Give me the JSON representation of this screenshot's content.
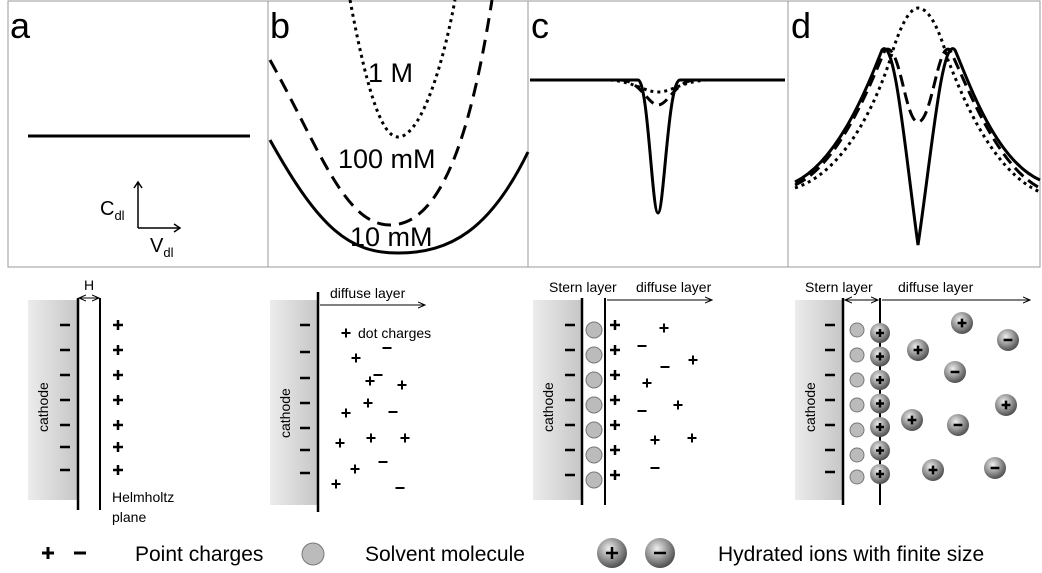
{
  "panels": [
    {
      "label": "a",
      "axis": {
        "y": "C",
        "y_sub": "dl",
        "x": "V",
        "x_sub": "dl"
      }
    },
    {
      "label": "b",
      "curve_labels": [
        "1 M",
        "100 mM",
        "10 mM"
      ]
    },
    {
      "label": "c"
    },
    {
      "label": "d"
    }
  ],
  "diagrams": [
    {
      "electrode": "cathode",
      "gap": "H",
      "plane": [
        "Helmholtz",
        "plane"
      ]
    },
    {
      "electrode": "cathode",
      "layer": "diffuse layer",
      "note": "dot charges"
    },
    {
      "electrode": "cathode",
      "stern": "Stern layer",
      "layer": "diffuse layer"
    },
    {
      "electrode": "cathode",
      "stern": "Stern layer",
      "layer": "diffuse layer"
    }
  ],
  "legend": {
    "point": "Point charges",
    "solvent": "Solvent molecule",
    "ions": "Hydrated ions with finite size"
  }
}
